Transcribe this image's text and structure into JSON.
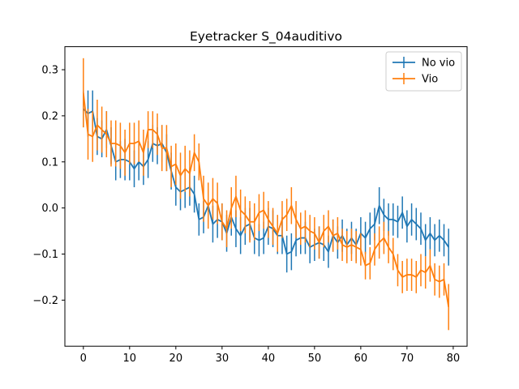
{
  "chart_data": {
    "type": "line",
    "title": "Eyetracker S_04auditivo",
    "xlabel": "",
    "ylabel": "",
    "xlim": [
      -4,
      83
    ],
    "ylim": [
      -0.3,
      0.35
    ],
    "x_ticks": [
      0,
      10,
      20,
      30,
      40,
      50,
      60,
      70,
      80
    ],
    "y_ticks": [
      -0.2,
      -0.1,
      0.0,
      0.1,
      0.2,
      0.3
    ],
    "y_tick_labels": [
      "−0.2",
      "−0.1",
      "0.0",
      "0.1",
      "0.2",
      "0.3"
    ],
    "legend_position": "top-right",
    "grid": false,
    "series": [
      {
        "name": "No vio",
        "color": "#1f77b4",
        "x": [
          0,
          1,
          2,
          3,
          4,
          5,
          6,
          7,
          8,
          9,
          10,
          11,
          12,
          13,
          14,
          15,
          16,
          17,
          18,
          19,
          20,
          21,
          22,
          23,
          24,
          25,
          26,
          27,
          28,
          29,
          30,
          31,
          32,
          33,
          34,
          35,
          36,
          37,
          38,
          39,
          40,
          41,
          42,
          43,
          44,
          45,
          46,
          47,
          48,
          49,
          50,
          51,
          52,
          53,
          54,
          55,
          56,
          57,
          58,
          59,
          60,
          61,
          62,
          63,
          64,
          65,
          66,
          67,
          68,
          69,
          70,
          71,
          72,
          73,
          74,
          75,
          76,
          77,
          78,
          79
        ],
        "y": [
          0.215,
          0.205,
          0.21,
          0.155,
          0.15,
          0.17,
          0.135,
          0.1,
          0.105,
          0.105,
          0.1,
          0.085,
          0.1,
          0.09,
          0.105,
          0.14,
          0.135,
          0.14,
          0.12,
          0.08,
          0.045,
          0.035,
          0.04,
          0.045,
          0.03,
          -0.025,
          -0.02,
          0.005,
          -0.035,
          -0.025,
          -0.03,
          -0.055,
          -0.02,
          -0.045,
          -0.06,
          -0.04,
          -0.035,
          -0.065,
          -0.07,
          -0.065,
          -0.04,
          -0.045,
          -0.06,
          -0.06,
          -0.1,
          -0.095,
          -0.07,
          -0.065,
          -0.065,
          -0.085,
          -0.08,
          -0.075,
          -0.08,
          -0.095,
          -0.06,
          -0.075,
          -0.06,
          -0.08,
          -0.065,
          -0.08,
          -0.055,
          -0.065,
          -0.045,
          -0.035,
          0.005,
          -0.015,
          -0.025,
          -0.025,
          -0.03,
          -0.01,
          -0.04,
          -0.025,
          -0.035,
          -0.045,
          -0.07,
          -0.055,
          -0.07,
          -0.06,
          -0.07,
          -0.085
        ],
        "err": [
          0.04,
          0.05,
          0.045,
          0.04,
          0.04,
          0.04,
          0.04,
          0.04,
          0.04,
          0.045,
          0.04,
          0.04,
          0.04,
          0.04,
          0.04,
          0.04,
          0.04,
          0.04,
          0.04,
          0.04,
          0.04,
          0.04,
          0.04,
          0.04,
          0.04,
          0.035,
          0.035,
          0.035,
          0.04,
          0.04,
          0.04,
          0.04,
          0.04,
          0.04,
          0.04,
          0.04,
          0.035,
          0.035,
          0.035,
          0.035,
          0.04,
          0.04,
          0.04,
          0.04,
          0.04,
          0.04,
          0.035,
          0.035,
          0.035,
          0.035,
          0.035,
          0.035,
          0.035,
          0.035,
          0.035,
          0.035,
          0.035,
          0.035,
          0.035,
          0.035,
          0.035,
          0.035,
          0.035,
          0.035,
          0.04,
          0.035,
          0.035,
          0.035,
          0.035,
          0.035,
          0.035,
          0.035,
          0.035,
          0.035,
          0.035,
          0.035,
          0.035,
          0.035,
          0.035,
          0.04
        ]
      },
      {
        "name": "Vio",
        "color": "#ff7f0e",
        "x": [
          0,
          1,
          2,
          3,
          4,
          5,
          6,
          7,
          8,
          9,
          10,
          11,
          12,
          13,
          14,
          15,
          16,
          17,
          18,
          19,
          20,
          21,
          22,
          23,
          24,
          25,
          26,
          27,
          28,
          29,
          30,
          31,
          32,
          33,
          34,
          35,
          36,
          37,
          38,
          39,
          40,
          41,
          42,
          43,
          44,
          45,
          46,
          47,
          48,
          49,
          50,
          51,
          52,
          53,
          54,
          55,
          56,
          57,
          58,
          59,
          60,
          61,
          62,
          63,
          64,
          65,
          66,
          67,
          68,
          69,
          70,
          71,
          72,
          73,
          74,
          75,
          76,
          77,
          78,
          79
        ],
        "y": [
          0.25,
          0.16,
          0.155,
          0.18,
          0.17,
          0.16,
          0.14,
          0.14,
          0.135,
          0.12,
          0.14,
          0.14,
          0.145,
          0.12,
          0.17,
          0.17,
          0.16,
          0.13,
          0.13,
          0.09,
          0.095,
          0.07,
          0.085,
          0.075,
          0.12,
          0.1,
          0.02,
          0.005,
          0.02,
          0.01,
          -0.03,
          -0.045,
          0.0,
          0.025,
          -0.005,
          -0.015,
          -0.03,
          -0.03,
          -0.01,
          -0.005,
          -0.025,
          -0.04,
          -0.055,
          -0.025,
          -0.015,
          0.005,
          -0.025,
          -0.045,
          -0.04,
          -0.05,
          -0.055,
          -0.075,
          -0.05,
          -0.04,
          -0.06,
          -0.055,
          -0.08,
          -0.085,
          -0.08,
          -0.085,
          -0.09,
          -0.125,
          -0.12,
          -0.09,
          -0.075,
          -0.065,
          -0.085,
          -0.1,
          -0.135,
          -0.15,
          -0.145,
          -0.145,
          -0.15,
          -0.135,
          -0.14,
          -0.125,
          -0.155,
          -0.16,
          -0.155,
          -0.215
        ],
        "err": [
          0.075,
          0.055,
          0.055,
          0.055,
          0.05,
          0.05,
          0.05,
          0.05,
          0.05,
          0.05,
          0.045,
          0.045,
          0.045,
          0.05,
          0.04,
          0.04,
          0.045,
          0.05,
          0.05,
          0.045,
          0.045,
          0.05,
          0.05,
          0.05,
          0.04,
          0.04,
          0.05,
          0.05,
          0.045,
          0.045,
          0.04,
          0.04,
          0.045,
          0.045,
          0.045,
          0.04,
          0.045,
          0.04,
          0.04,
          0.04,
          0.04,
          0.04,
          0.04,
          0.04,
          0.035,
          0.04,
          0.04,
          0.035,
          0.035,
          0.035,
          0.035,
          0.035,
          0.035,
          0.035,
          0.035,
          0.035,
          0.035,
          0.035,
          0.035,
          0.035,
          0.035,
          0.03,
          0.035,
          0.035,
          0.035,
          0.035,
          0.035,
          0.035,
          0.035,
          0.035,
          0.035,
          0.035,
          0.035,
          0.035,
          0.035,
          0.035,
          0.035,
          0.035,
          0.035,
          0.05
        ]
      }
    ]
  }
}
